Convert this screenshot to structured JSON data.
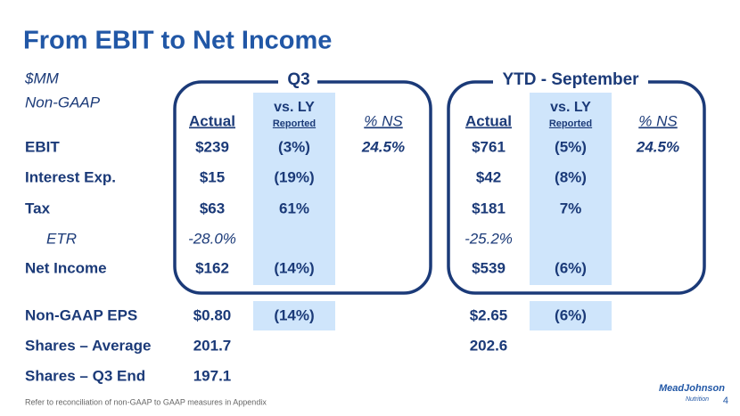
{
  "header": {
    "title": "From EBIT to Net Income"
  },
  "labels": {
    "units": "$MM",
    "basis": "Non-GAAP"
  },
  "groups": [
    {
      "title": "Q3",
      "columns": [
        {
          "label": "Actual"
        },
        {
          "label": "vs. LY",
          "sublabel": "Reported"
        },
        {
          "label": "% NS"
        }
      ]
    },
    {
      "title": "YTD - September",
      "columns": [
        {
          "label": "Actual"
        },
        {
          "label": "vs. LY",
          "sublabel": "Reported"
        },
        {
          "label": "% NS"
        }
      ]
    }
  ],
  "table": {
    "rows": [
      {
        "label": "EBIT",
        "cells": [
          "$239",
          "(3%)",
          "24.5%",
          "$761",
          "(5%)",
          "24.5%"
        ]
      },
      {
        "label": "Interest Exp.",
        "cells": [
          "$15",
          "(19%)",
          null,
          "$42",
          "(8%)",
          null
        ]
      },
      {
        "label": "Tax",
        "cells": [
          "$63",
          "61%",
          null,
          "$181",
          "7%",
          null
        ]
      },
      {
        "label": "ETR",
        "cells": [
          "-28.0%",
          null,
          null,
          "-25.2%",
          null,
          null
        ]
      },
      {
        "label": "Net Income",
        "cells": [
          "$162",
          "(14%)",
          null,
          "$539",
          "(6%)",
          null
        ]
      },
      {
        "label": "Non-GAAP EPS",
        "cells": [
          "$0.80",
          "(14%)",
          null,
          "$2.65",
          "(6%)",
          null
        ]
      },
      {
        "label": "Shares – Average",
        "cells": [
          "201.7",
          null,
          null,
          "202.6",
          null,
          null
        ]
      },
      {
        "label": "Shares – Q3 End",
        "cells": [
          "197.1",
          null,
          null,
          null,
          null,
          null
        ]
      }
    ]
  },
  "footer": {
    "footnote": "Refer to reconciliation of non-GAAP to GAAP measures in Appendix",
    "page_number": "4",
    "logo": [
      "MeadJohnson",
      "Nutrition"
    ]
  }
}
